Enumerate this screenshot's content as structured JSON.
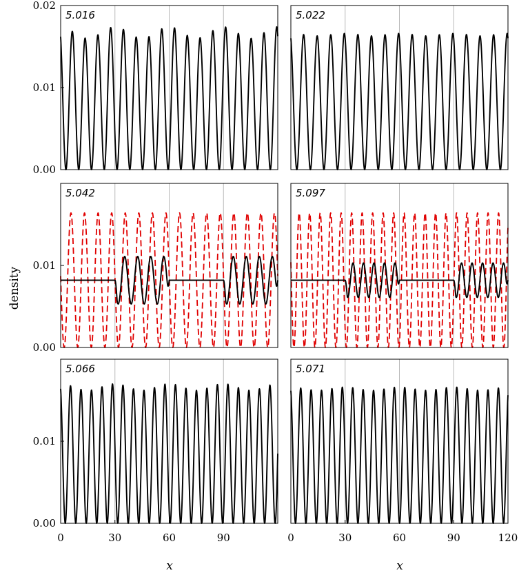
{
  "chart_data": {
    "type": "line",
    "ylabel": "density",
    "xlabel": "x",
    "xlim": [
      0,
      120
    ],
    "ylim": [
      0,
      0.02
    ],
    "x_ticks": [
      "0",
      "30",
      "60",
      "90"
    ],
    "x_ticks_right": [
      "0",
      "30",
      "60",
      "90",
      "120"
    ],
    "y_ticks": [
      "0.00",
      "0.01",
      "0.02"
    ],
    "y_ticks_lower": [
      "0.00",
      "0.01"
    ],
    "vertical_gridlines": [
      30,
      60,
      90
    ],
    "colors": {
      "solid": "#000000",
      "dashed": "#e00000"
    },
    "panels": [
      {
        "label": "5.016",
        "series": [
          {
            "style": "solid",
            "period": 7.06,
            "phase": -0.6,
            "base": 0.0086,
            "amp": 0.0086,
            "peak_min": 0.016,
            "peak_max": 0.0174,
            "envelope_period": 30
          }
        ]
      },
      {
        "label": "5.022",
        "series": [
          {
            "style": "solid",
            "period": 7.5,
            "phase": -0.45,
            "base": 0.0083,
            "amp": 0.0083,
            "peak_min": 0.0163,
            "peak_max": 0.0166,
            "envelope_period": 30
          }
        ]
      },
      {
        "label": "5.042",
        "series": [
          {
            "style": "dashed",
            "period": 7.5,
            "phase": -1.8,
            "base": 0.0082,
            "amp": 0.0082,
            "peak_min": 0.0164,
            "peak_max": 0.0164,
            "envelope_period": 30
          },
          {
            "style": "solid",
            "base": 0.0082,
            "flat_value": 0.0082,
            "osc_amp": 0.0029,
            "osc_period": 7.2,
            "osc_windows": [
              [
                30,
                60
              ],
              [
                90,
                120
              ]
            ]
          }
        ]
      },
      {
        "label": "5.097",
        "series": [
          {
            "style": "dashed",
            "period": 5.8,
            "phase": -1.2,
            "base": 0.0082,
            "amp": 0.0082,
            "peak_min": 0.0164,
            "peak_max": 0.0164,
            "envelope_period": 30
          },
          {
            "style": "solid",
            "base": 0.0082,
            "flat_value": 0.0082,
            "osc_amp": 0.0021,
            "osc_period": 5.8,
            "osc_windows": [
              [
                30,
                60
              ],
              [
                90,
                120
              ]
            ]
          }
        ]
      },
      {
        "label": "5.066",
        "series": [
          {
            "style": "solid",
            "period": 5.8,
            "phase": -0.35,
            "base": 0.0084,
            "amp": 0.0084,
            "peak_min": 0.0162,
            "peak_max": 0.017,
            "envelope_period": 30
          }
        ]
      },
      {
        "label": "5.071",
        "series": [
          {
            "style": "solid",
            "period": 5.75,
            "phase": -0.3,
            "base": 0.0082,
            "amp": 0.0082,
            "peak_min": 0.0162,
            "peak_max": 0.0166,
            "envelope_period": 30
          }
        ]
      }
    ]
  }
}
